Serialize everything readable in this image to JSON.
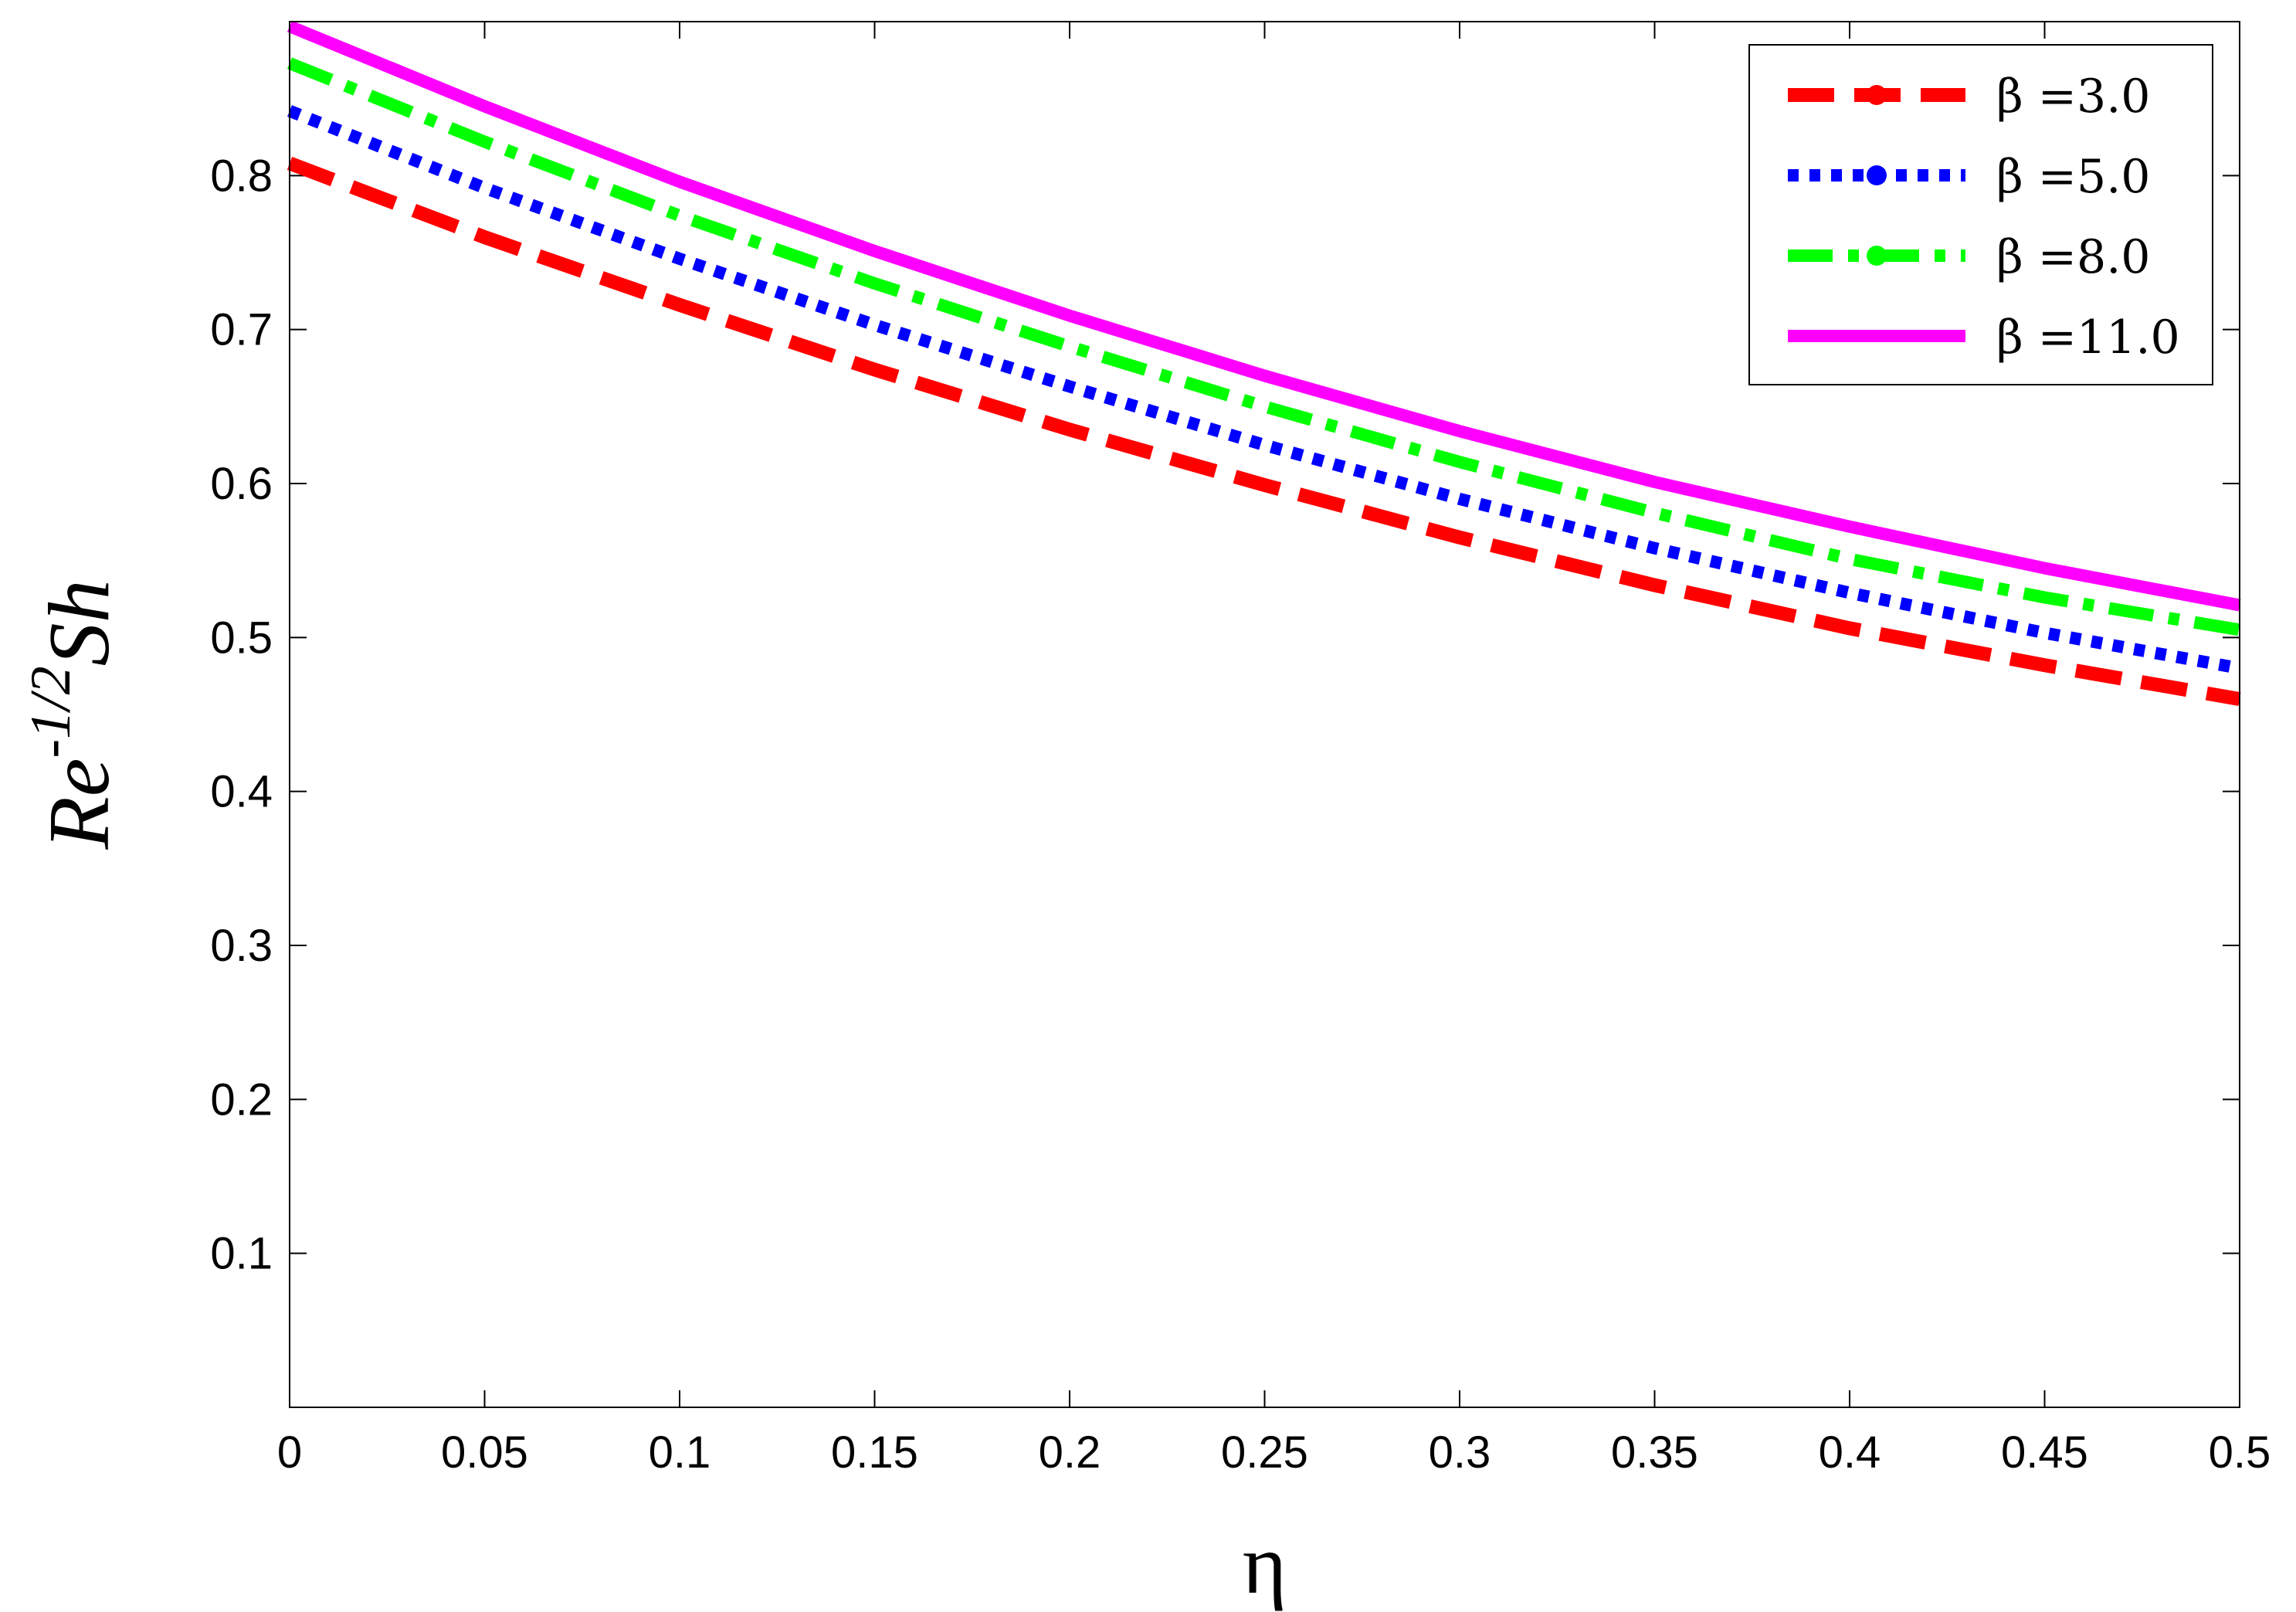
{
  "chart_data": {
    "type": "line",
    "xlabel": "η",
    "ylabel": {
      "base": "Re",
      "superscript": "-1/2",
      "suffix": "Sh"
    },
    "xlim": [
      0,
      0.5
    ],
    "ylim": [
      0,
      0.9
    ],
    "x_ticks": [
      0,
      0.05,
      0.1,
      0.15,
      0.2,
      0.25,
      0.3,
      0.35,
      0.4,
      0.45,
      0.5
    ],
    "x_tick_labels": [
      "0",
      "0.05",
      "0.1",
      "0.15",
      "0.2",
      "0.25",
      "0.3",
      "0.35",
      "0.4",
      "0.45",
      "0.5"
    ],
    "y_ticks": [
      0.1,
      0.2,
      0.3,
      0.4,
      0.5,
      0.6,
      0.7,
      0.8
    ],
    "y_tick_labels": [
      "0.1",
      "0.2",
      "0.3",
      "0.4",
      "0.5",
      "0.6",
      "0.7",
      "0.8"
    ],
    "grid": false,
    "legend_position": "top-right",
    "x": [
      0,
      0.05,
      0.1,
      0.15,
      0.2,
      0.25,
      0.3,
      0.35,
      0.4,
      0.45,
      0.5
    ],
    "series": [
      {
        "name": "β =3.0",
        "color": "#ff0000",
        "style": "dashed",
        "values": [
          0.808,
          0.76,
          0.716,
          0.674,
          0.635,
          0.599,
          0.565,
          0.534,
          0.506,
          0.482,
          0.46
        ]
      },
      {
        "name": "β =5.0",
        "color": "#0000ff",
        "style": "dotted",
        "values": [
          0.842,
          0.792,
          0.746,
          0.703,
          0.663,
          0.625,
          0.59,
          0.558,
          0.529,
          0.503,
          0.48
        ]
      },
      {
        "name": "β =8.0",
        "color": "#00ff00",
        "style": "dashdot",
        "values": [
          0.873,
          0.822,
          0.774,
          0.73,
          0.689,
          0.65,
          0.614,
          0.581,
          0.551,
          0.526,
          0.505
        ]
      },
      {
        "name": "β =11.0",
        "color": "#ff00ff",
        "style": "solid",
        "values": [
          0.897,
          0.845,
          0.796,
          0.751,
          0.709,
          0.67,
          0.634,
          0.601,
          0.572,
          0.545,
          0.521
        ]
      }
    ]
  }
}
